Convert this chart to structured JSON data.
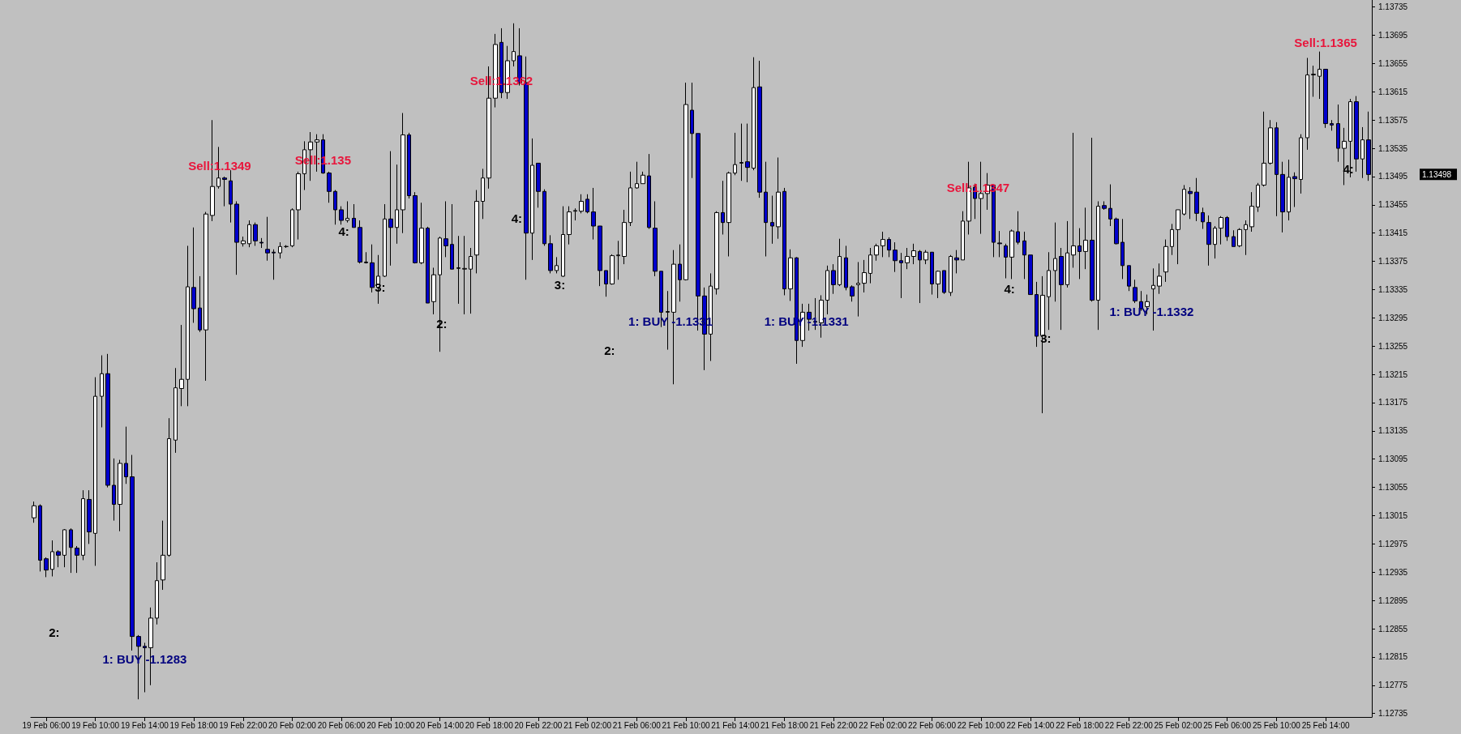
{
  "chart_data": {
    "type": "candlestick",
    "categories": [
      null,
      null,
      "19 Feb 06:00",
      null,
      null,
      null,
      null,
      null,
      null,
      null,
      "19 Feb 10:00",
      null,
      null,
      null,
      null,
      null,
      null,
      null,
      "19 Feb 14:00",
      null,
      null,
      null,
      null,
      null,
      null,
      null,
      "19 Feb 18:00",
      null,
      null,
      null,
      null,
      null,
      null,
      null,
      "19 Feb 22:00",
      null,
      null,
      null,
      null,
      null,
      null,
      null,
      "20 Feb 02:00",
      null,
      null,
      null,
      null,
      null,
      null,
      null,
      "20 Feb 06:00",
      null,
      null,
      null,
      null,
      null,
      null,
      null,
      "20 Feb 10:00",
      null,
      null,
      null,
      null,
      null,
      null,
      null,
      "20 Feb 14:00",
      null,
      null,
      null,
      null,
      null,
      null,
      null,
      "20 Feb 18:00",
      null,
      null,
      null,
      null,
      null,
      null,
      null,
      "20 Feb 22:00",
      null,
      null,
      null,
      null,
      null,
      null,
      null,
      "21 Feb 02:00",
      null,
      null,
      null,
      null,
      null,
      null,
      null,
      "21 Feb 06:00",
      null,
      null,
      null,
      null,
      null,
      null,
      null,
      "21 Feb 10:00",
      null,
      null,
      null,
      null,
      null,
      null,
      null,
      "21 Feb 14:00",
      null,
      null,
      null,
      null,
      null,
      null,
      null,
      "21 Feb 18:00",
      null,
      null,
      null,
      null,
      null,
      null,
      null,
      "21 Feb 22:00",
      null,
      null,
      null,
      null,
      null,
      null,
      null,
      "22 Feb 02:00",
      null,
      null,
      null,
      null,
      null,
      null,
      null,
      "22 Feb 06:00",
      null,
      null,
      null,
      null,
      null,
      null,
      null,
      "22 Feb 10:00",
      null,
      null,
      null,
      null,
      null,
      null,
      null,
      "22 Feb 14:00",
      null,
      null,
      null,
      null,
      null,
      null,
      null,
      "22 Feb 18:00",
      null,
      null,
      null,
      null,
      null,
      null,
      null,
      "22 Feb 22:00",
      null,
      null,
      null,
      null,
      null,
      null,
      null,
      "25 Feb 02:00",
      null,
      null,
      null,
      null,
      null,
      null,
      null,
      "25 Feb 06:00",
      null,
      null,
      null,
      null,
      null,
      null,
      null,
      "25 Feb 10:00",
      null,
      null,
      null,
      null,
      null,
      null,
      null,
      "25 Feb 14:00",
      null,
      null,
      null,
      null,
      null,
      null,
      null
    ],
    "ohlc": [
      [
        1.13012,
        1.13035,
        1.13005,
        1.13029
      ],
      [
        1.13029,
        1.13031,
        1.12936,
        1.12952
      ],
      [
        1.12954,
        1.12956,
        1.12928,
        1.12938
      ],
      [
        1.12939,
        1.1298,
        1.12929,
        1.12964
      ],
      [
        1.12964,
        1.12966,
        1.12942,
        1.12959
      ],
      [
        1.12959,
        1.12996,
        1.12942,
        1.12995
      ],
      [
        1.12995,
        1.12997,
        1.12934,
        1.1297
      ],
      [
        1.12969,
        1.12972,
        1.12934,
        1.12959
      ],
      [
        1.12959,
        1.13051,
        1.12952,
        1.13039
      ],
      [
        1.13038,
        1.13051,
        1.12975,
        1.12992
      ],
      [
        1.1299,
        1.13211,
        1.12944,
        1.13184
      ],
      [
        1.13184,
        1.13242,
        1.1314,
        1.13216
      ],
      [
        1.13216,
        1.13244,
        1.13055,
        1.13058
      ],
      [
        1.13058,
        1.13096,
        1.13008,
        1.13031
      ],
      [
        1.13031,
        1.13094,
        1.12993,
        1.13089
      ],
      [
        1.13089,
        1.13141,
        1.1306,
        1.1307
      ],
      [
        1.1307,
        1.13101,
        1.12824,
        1.12844
      ],
      [
        1.12844,
        1.12846,
        1.12755,
        1.1283
      ],
      [
        1.1283,
        1.12835,
        1.12765,
        1.12828
      ],
      [
        1.12828,
        1.12885,
        1.12775,
        1.1287
      ],
      [
        1.1287,
        1.12949,
        1.12861,
        1.12923
      ],
      [
        1.12924,
        1.13008,
        1.1291,
        1.12959
      ],
      [
        1.12959,
        1.13153,
        1.12957,
        1.13124
      ],
      [
        1.13122,
        1.13224,
        1.13104,
        1.13196
      ],
      [
        1.13195,
        1.13285,
        1.1317,
        1.13208
      ],
      [
        1.13208,
        1.13397,
        1.1317,
        1.13339
      ],
      [
        1.13338,
        1.13423,
        1.13288,
        1.13308
      ],
      [
        1.13309,
        1.13354,
        1.13275,
        1.13278
      ],
      [
        1.13278,
        1.13445,
        1.13206,
        1.13442
      ],
      [
        1.1344,
        1.13575,
        1.13432,
        1.13481
      ],
      [
        1.13481,
        1.13537,
        1.13478,
        1.13493
      ],
      [
        1.13493,
        1.13495,
        1.13453,
        1.13491
      ],
      [
        1.13489,
        1.13504,
        1.1343,
        1.13456
      ],
      [
        1.13456,
        1.1346,
        1.13356,
        1.13402
      ],
      [
        1.134,
        1.1341,
        1.13396,
        1.13404
      ],
      [
        1.134,
        1.13433,
        1.13395,
        1.13427
      ],
      [
        1.13427,
        1.1343,
        1.13397,
        1.13404
      ],
      [
        1.13402,
        1.13408,
        1.13394,
        1.13401
      ],
      [
        1.13392,
        1.13438,
        1.13376,
        1.13387
      ],
      [
        1.13388,
        1.13392,
        1.13349,
        1.13387
      ],
      [
        1.13387,
        1.13402,
        1.13379,
        1.13396
      ],
      [
        1.13396,
        1.13398,
        1.13394,
        1.13396
      ],
      [
        1.13397,
        1.1345,
        1.13395,
        1.13448
      ],
      [
        1.13448,
        1.13502,
        1.13406,
        1.13499
      ],
      [
        1.13499,
        1.13545,
        1.13476,
        1.13533
      ],
      [
        1.13533,
        1.13558,
        1.13489,
        1.13544
      ],
      [
        1.13544,
        1.13555,
        1.13502,
        1.13547
      ],
      [
        1.13547,
        1.13555,
        1.13499,
        1.135
      ],
      [
        1.135,
        1.13502,
        1.13458,
        1.13474
      ],
      [
        1.13474,
        1.13476,
        1.13427,
        1.13448
      ],
      [
        1.13448,
        1.13453,
        1.13427,
        1.13433
      ],
      [
        1.13433,
        1.1346,
        1.1343,
        1.13436
      ],
      [
        1.13436,
        1.13456,
        1.13423,
        1.13423
      ],
      [
        1.13423,
        1.13433,
        1.13372,
        1.13374
      ],
      [
        1.13374,
        1.13388,
        1.13372,
        1.13373
      ],
      [
        1.13373,
        1.13399,
        1.13331,
        1.13338
      ],
      [
        1.13338,
        1.13384,
        1.13315,
        1.13354
      ],
      [
        1.13354,
        1.13456,
        1.13353,
        1.13435
      ],
      [
        1.13435,
        1.13531,
        1.13369,
        1.13423
      ],
      [
        1.13423,
        1.13512,
        1.134,
        1.13448
      ],
      [
        1.13448,
        1.13585,
        1.13415,
        1.13554
      ],
      [
        1.13554,
        1.13557,
        1.13464,
        1.13468
      ],
      [
        1.13468,
        1.13473,
        1.13372,
        1.13373
      ],
      [
        1.13373,
        1.13458,
        1.13371,
        1.13422
      ],
      [
        1.13422,
        1.13424,
        1.13316,
        1.13316
      ],
      [
        1.13318,
        1.13366,
        1.133,
        1.13356
      ],
      [
        1.13356,
        1.1341,
        1.13247,
        1.13408
      ],
      [
        1.13407,
        1.1346,
        1.13381,
        1.13397
      ],
      [
        1.13399,
        1.13456,
        1.13364,
        1.13364
      ],
      [
        1.13365,
        1.13411,
        1.13315,
        1.13366
      ],
      [
        1.13364,
        1.13411,
        1.133,
        1.13365
      ],
      [
        1.13364,
        1.13394,
        1.13301,
        1.13382
      ],
      [
        1.13384,
        1.13476,
        1.13358,
        1.1346
      ],
      [
        1.1346,
        1.13506,
        1.13435,
        1.13493
      ],
      [
        1.13493,
        1.13651,
        1.13478,
        1.13606
      ],
      [
        1.13606,
        1.13697,
        1.13593,
        1.13682
      ],
      [
        1.13685,
        1.13705,
        1.13606,
        1.13614
      ],
      [
        1.13614,
        1.1368,
        1.13605,
        1.13659
      ],
      [
        1.13659,
        1.13712,
        1.13651,
        1.13672
      ],
      [
        1.13666,
        1.13705,
        1.13624,
        1.13628
      ],
      [
        1.13628,
        1.13665,
        1.13349,
        1.13415
      ],
      [
        1.13415,
        1.13549,
        1.13377,
        1.13511
      ],
      [
        1.13514,
        1.13514,
        1.13451,
        1.13474
      ],
      [
        1.13474,
        1.13477,
        1.13397,
        1.134
      ],
      [
        1.134,
        1.13412,
        1.13358,
        1.13362
      ],
      [
        1.13362,
        1.13381,
        1.13358,
        1.13369
      ],
      [
        1.13354,
        1.13453,
        1.13353,
        1.13413
      ],
      [
        1.13413,
        1.13453,
        1.13399,
        1.13445
      ],
      [
        1.13446,
        1.1345,
        1.13433,
        1.13447
      ],
      [
        1.13446,
        1.1347,
        1.13443,
        1.1346
      ],
      [
        1.13463,
        1.1347,
        1.13443,
        1.13445
      ],
      [
        1.13445,
        1.13479,
        1.13406,
        1.13425
      ],
      [
        1.13425,
        1.13425,
        1.1334,
        1.13362
      ],
      [
        1.13362,
        1.13362,
        1.13325,
        1.13343
      ],
      [
        1.13343,
        1.13385,
        1.13342,
        1.13383
      ],
      [
        1.13383,
        1.13404,
        1.13349,
        1.13384
      ],
      [
        1.13382,
        1.13448,
        1.13371,
        1.1343
      ],
      [
        1.1343,
        1.13502,
        1.13425,
        1.13479
      ],
      [
        1.13479,
        1.13516,
        1.13478,
        1.13485
      ],
      [
        1.13485,
        1.13502,
        1.13485,
        1.13497
      ],
      [
        1.13496,
        1.13527,
        1.13421,
        1.13423
      ],
      [
        1.13422,
        1.1346,
        1.13354,
        1.13361
      ],
      [
        1.13361,
        1.13361,
        1.13282,
        1.13303
      ],
      [
        1.13303,
        1.13333,
        1.1325,
        1.13304
      ],
      [
        1.13303,
        1.13391,
        1.13201,
        1.13371
      ],
      [
        1.13371,
        1.13399,
        1.13318,
        1.13349
      ],
      [
        1.13349,
        1.13628,
        1.13348,
        1.13597
      ],
      [
        1.13589,
        1.13628,
        1.13493,
        1.13556
      ],
      [
        1.13556,
        1.13556,
        1.13277,
        1.13326
      ],
      [
        1.13326,
        1.13338,
        1.13221,
        1.13272
      ],
      [
        1.13272,
        1.13358,
        1.13234,
        1.1334
      ],
      [
        1.13336,
        1.13446,
        1.13328,
        1.13444
      ],
      [
        1.13444,
        1.13489,
        1.13413,
        1.1343
      ],
      [
        1.1343,
        1.13502,
        1.13382,
        1.135
      ],
      [
        1.135,
        1.13557,
        1.13497,
        1.13512
      ],
      [
        1.13514,
        1.1357,
        1.13489,
        1.13515
      ],
      [
        1.13516,
        1.1357,
        1.13487,
        1.13508
      ],
      [
        1.13507,
        1.13664,
        1.13504,
        1.13621
      ],
      [
        1.13622,
        1.13659,
        1.13465,
        1.13473
      ],
      [
        1.13473,
        1.13516,
        1.13382,
        1.1343
      ],
      [
        1.1343,
        1.13468,
        1.134,
        1.13425
      ],
      [
        1.13424,
        1.13522,
        1.13407,
        1.13473
      ],
      [
        1.13474,
        1.13479,
        1.13327,
        1.13336
      ],
      [
        1.13336,
        1.13392,
        1.13319,
        1.1338
      ],
      [
        1.1338,
        1.13381,
        1.1323,
        1.13263
      ],
      [
        1.13263,
        1.13315,
        1.13254,
        1.13303
      ],
      [
        1.13303,
        1.13315,
        1.13277,
        1.13293
      ],
      [
        1.1329,
        1.13323,
        1.13278,
        1.13289
      ],
      [
        1.13288,
        1.13327,
        1.13267,
        1.1332
      ],
      [
        1.1332,
        1.13369,
        1.133,
        1.13362
      ],
      [
        1.13362,
        1.13371,
        1.13329,
        1.13342
      ],
      [
        1.13342,
        1.13407,
        1.1334,
        1.13382
      ],
      [
        1.1338,
        1.13397,
        1.13334,
        1.13338
      ],
      [
        1.13339,
        1.13341,
        1.13318,
        1.13326
      ],
      [
        1.13342,
        1.13374,
        1.13297,
        1.13344
      ],
      [
        1.13344,
        1.13377,
        1.13331,
        1.13359
      ],
      [
        1.13358,
        1.13394,
        1.13344,
        1.13384
      ],
      [
        1.13384,
        1.134,
        1.13376,
        1.13397
      ],
      [
        1.13397,
        1.13417,
        1.13381,
        1.13406
      ],
      [
        1.13406,
        1.13409,
        1.13381,
        1.13391
      ],
      [
        1.13391,
        1.13402,
        1.1336,
        1.13376
      ],
      [
        1.13376,
        1.13387,
        1.13323,
        1.13373
      ],
      [
        1.13373,
        1.13394,
        1.13364,
        1.13382
      ],
      [
        1.13382,
        1.134,
        1.13371,
        1.1339
      ],
      [
        1.13389,
        1.13391,
        1.13316,
        1.13377
      ],
      [
        1.13377,
        1.13391,
        1.13371,
        1.13388
      ],
      [
        1.13388,
        1.13388,
        1.13328,
        1.13343
      ],
      [
        1.13343,
        1.13362,
        1.13323,
        1.13361
      ],
      [
        1.13362,
        1.13362,
        1.13329,
        1.13331
      ],
      [
        1.13331,
        1.13384,
        1.13326,
        1.13382
      ],
      [
        1.1338,
        1.13391,
        1.13358,
        1.13377
      ],
      [
        1.13377,
        1.13446,
        1.13377,
        1.13432
      ],
      [
        1.13432,
        1.13516,
        1.13413,
        1.13479
      ],
      [
        1.1348,
        1.13485,
        1.13435,
        1.13464
      ],
      [
        1.13464,
        1.13516,
        1.13414,
        1.13471
      ],
      [
        1.13471,
        1.135,
        1.13448,
        1.13483
      ],
      [
        1.13483,
        1.13483,
        1.13381,
        1.13402
      ],
      [
        1.13401,
        1.13418,
        1.13381,
        1.134
      ],
      [
        1.13397,
        1.134,
        1.13351,
        1.13381
      ],
      [
        1.13381,
        1.1342,
        1.1335,
        1.13418
      ],
      [
        1.13417,
        1.13446,
        1.13399,
        1.13402
      ],
      [
        1.13404,
        1.13417,
        1.1335,
        1.13384
      ],
      [
        1.13384,
        1.13384,
        1.13328,
        1.13328
      ],
      [
        1.13328,
        1.13346,
        1.13254,
        1.13269
      ],
      [
        1.1327,
        1.13354,
        1.1316,
        1.13327
      ],
      [
        1.13325,
        1.13388,
        1.13278,
        1.13362
      ],
      [
        1.13362,
        1.1343,
        1.13318,
        1.13379
      ],
      [
        1.13382,
        1.13394,
        1.13278,
        1.13342
      ],
      [
        1.13342,
        1.13432,
        1.13338,
        1.13387
      ],
      [
        1.13384,
        1.13557,
        1.13366,
        1.13397
      ],
      [
        1.13397,
        1.13422,
        1.1335,
        1.13389
      ],
      [
        1.13389,
        1.13451,
        1.13364,
        1.13405
      ],
      [
        1.13405,
        1.1355,
        1.13318,
        1.1332
      ],
      [
        1.1332,
        1.1346,
        1.13278,
        1.13453
      ],
      [
        1.13454,
        1.1346,
        1.13448,
        1.1345
      ],
      [
        1.1345,
        1.13484,
        1.13425,
        1.13435
      ],
      [
        1.13435,
        1.13437,
        1.13399,
        1.134
      ],
      [
        1.13402,
        1.13435,
        1.1335,
        1.13369
      ],
      [
        1.13369,
        1.13369,
        1.13333,
        1.1334
      ],
      [
        1.13338,
        1.13349,
        1.13316,
        1.13319
      ],
      [
        1.13318,
        1.13333,
        1.13305,
        1.13308
      ],
      [
        1.13311,
        1.13328,
        1.133,
        1.13318
      ],
      [
        1.13336,
        1.13365,
        1.13277,
        1.13341
      ],
      [
        1.1334,
        1.13372,
        1.13329,
        1.13354
      ],
      [
        1.1336,
        1.13406,
        1.13346,
        1.13396
      ],
      [
        1.13396,
        1.13428,
        1.13384,
        1.1342
      ],
      [
        1.1342,
        1.13448,
        1.13371,
        1.13448
      ],
      [
        1.13442,
        1.13483,
        1.1344,
        1.13477
      ],
      [
        1.13474,
        1.1348,
        1.13435,
        1.13471
      ],
      [
        1.13473,
        1.13493,
        1.13432,
        1.13443
      ],
      [
        1.13444,
        1.13451,
        1.13421,
        1.13431
      ],
      [
        1.1343,
        1.1344,
        1.13369,
        1.13399
      ],
      [
        1.13399,
        1.13425,
        1.13379,
        1.13422
      ],
      [
        1.13422,
        1.13439,
        1.13399,
        1.13437
      ],
      [
        1.13437,
        1.13439,
        1.13404,
        1.1341
      ],
      [
        1.1341,
        1.13419,
        1.13396,
        1.13396
      ],
      [
        1.13397,
        1.13422,
        1.13395,
        1.1342
      ],
      [
        1.1342,
        1.13433,
        1.13384,
        1.13427
      ],
      [
        1.13424,
        1.13473,
        1.13417,
        1.13453
      ],
      [
        1.13452,
        1.13486,
        1.13445,
        1.13483
      ],
      [
        1.13483,
        1.13587,
        1.13481,
        1.13514
      ],
      [
        1.13514,
        1.13575,
        1.13512,
        1.13564
      ],
      [
        1.13564,
        1.13572,
        1.13439,
        1.13498
      ],
      [
        1.13498,
        1.13516,
        1.13416,
        1.13445
      ],
      [
        1.13445,
        1.13519,
        1.13433,
        1.13494
      ],
      [
        1.13495,
        1.13501,
        1.13452,
        1.13492
      ],
      [
        1.13491,
        1.13555,
        1.13471,
        1.1355
      ],
      [
        1.1355,
        1.13663,
        1.13533,
        1.13639
      ],
      [
        1.13639,
        1.13652,
        1.13608,
        1.1364
      ],
      [
        1.13637,
        1.13672,
        1.13605,
        1.13647
      ],
      [
        1.13647,
        1.13647,
        1.13564,
        1.1357
      ],
      [
        1.1357,
        1.13575,
        1.1356,
        1.13568
      ],
      [
        1.1357,
        1.13597,
        1.13516,
        1.13535
      ],
      [
        1.13535,
        1.13564,
        1.13483,
        1.13545
      ],
      [
        1.13545,
        1.13605,
        1.13494,
        1.13601
      ],
      [
        1.13601,
        1.13609,
        1.13502,
        1.1352
      ],
      [
        1.1352,
        1.13565,
        1.13493,
        1.13547
      ],
      [
        1.13547,
        1.13587,
        1.13489,
        1.13498
      ]
    ],
    "colors": [
      "#ffffff",
      "#0000cd",
      "#0000cd",
      "#ffffff",
      "#0000cd",
      "#ffffff",
      "#0000cd",
      "#0000cd",
      "#ffffff",
      "#0000cd",
      "#ffffff",
      "#ffffff",
      "#0000cd",
      "#0000cd",
      "#ffffff",
      "#0000cd",
      "#0000cd",
      "#0000cd",
      "#0000cd",
      "#ffffff",
      "#ffffff",
      "#ffffff",
      "#ffffff",
      "#ffffff",
      "#ffffff",
      "#ffffff",
      "#0000cd",
      "#0000cd",
      "#ffffff",
      "#ffffff",
      "#ffffff",
      "#0000cd",
      "#0000cd",
      "#0000cd",
      "#ffffff",
      "#ffffff",
      "#0000cd",
      "#0000cd",
      "#0000cd",
      "#0000cd",
      "#ffffff",
      "#000000",
      "#ffffff",
      "#ffffff",
      "#ffffff",
      "#ffffff",
      "#ffffff",
      "#0000cd",
      "#0000cd",
      "#0000cd",
      "#0000cd",
      "#ffffff",
      "#0000cd",
      "#0000cd",
      "#0000cd",
      "#0000cd",
      "#ffffff",
      "#ffffff",
      "#0000cd",
      "#ffffff",
      "#ffffff",
      "#0000cd",
      "#0000cd",
      "#ffffff",
      "#0000cd",
      "#ffffff",
      "#ffffff",
      "#0000cd",
      "#0000cd",
      "#ffffff",
      "#ffffff",
      "#ffffff",
      "#ffffff",
      "#ffffff",
      "#ffffff",
      "#ffffff",
      "#0000cd",
      "#ffffff",
      "#ffffff",
      "#0000cd",
      "#0000cd",
      "#ffffff",
      "#0000cd",
      "#0000cd",
      "#0000cd",
      "#ffffff",
      "#ffffff",
      "#ffffff",
      "#ffffff",
      "#ffffff",
      "#0000cd",
      "#0000cd",
      "#0000cd",
      "#0000cd",
      "#ffffff",
      "#ffffff",
      "#ffffff",
      "#ffffff",
      "#ffffff",
      "#ffffff",
      "#0000cd",
      "#0000cd",
      "#0000cd",
      "#ffffff",
      "#ffffff",
      "#0000cd",
      "#ffffff",
      "#0000cd",
      "#0000cd",
      "#0000cd",
      "#ffffff",
      "#ffffff",
      "#0000cd",
      "#ffffff",
      "#ffffff",
      "#ffffff",
      "#0000cd",
      "#ffffff",
      "#0000cd",
      "#0000cd",
      "#0000cd",
      "#ffffff",
      "#0000cd",
      "#ffffff",
      "#0000cd",
      "#ffffff",
      "#0000cd",
      "#0000cd",
      "#ffffff",
      "#ffffff",
      "#0000cd",
      "#ffffff",
      "#0000cd",
      "#0000cd",
      "#ffffff",
      "#ffffff",
      "#ffffff",
      "#ffffff",
      "#ffffff",
      "#0000cd",
      "#0000cd",
      "#0000cd",
      "#ffffff",
      "#ffffff",
      "#0000cd",
      "#ffffff",
      "#0000cd",
      "#ffffff",
      "#0000cd",
      "#ffffff",
      "#0000cd",
      "#ffffff",
      "#ffffff",
      "#0000cd",
      "#ffffff",
      "#ffffff",
      "#0000cd",
      "#0000cd",
      "#0000cd",
      "#ffffff",
      "#0000cd",
      "#0000cd",
      "#0000cd",
      "#0000cd",
      "#ffffff",
      "#ffffff",
      "#ffffff",
      "#0000cd",
      "#ffffff",
      "#ffffff",
      "#0000cd",
      "#ffffff",
      "#0000cd",
      "#ffffff",
      "#0000cd",
      "#0000cd",
      "#0000cd",
      "#0000cd",
      "#0000cd",
      "#0000cd",
      "#0000cd",
      "#ffffff",
      "#ffffff",
      "#ffffff",
      "#ffffff",
      "#ffffff",
      "#ffffff",
      "#ffffff",
      "#0000cd",
      "#0000cd",
      "#0000cd",
      "#0000cd",
      "#ffffff",
      "#ffffff",
      "#0000cd",
      "#0000cd",
      "#ffffff",
      "#ffffff",
      "#ffffff",
      "#ffffff",
      "#ffffff",
      "#ffffff",
      "#0000cd",
      "#0000cd",
      "#ffffff",
      "#0000cd",
      "#ffffff",
      "#ffffff",
      "#ffffff",
      "#ffffff",
      "#0000cd",
      "#0000cd",
      "#0000cd",
      "#ffffff",
      "#ffffff",
      "#0000cd",
      "#ffffff",
      "#0000cd"
    ],
    "ylim": [
      1.1273,
      1.13745
    ],
    "yticks": [
      1.12735,
      1.12775,
      1.12815,
      1.12855,
      1.12895,
      1.12935,
      1.12975,
      1.13015,
      1.13055,
      1.13095,
      1.13135,
      1.13175,
      1.13215,
      1.13255,
      1.13295,
      1.13335,
      1.13375,
      1.13415,
      1.13455,
      1.13495,
      1.13535,
      1.13575,
      1.13615,
      1.13655,
      1.13695,
      1.13735
    ],
    "grid": false,
    "annotations": [
      "Sell:1.1349",
      "Sell:1.135",
      "Sell:1.1362",
      "Sell:1.1347",
      "Sell:1.1365",
      "1: BUY -1.1283",
      "1: BUY -1.1331",
      "1: BUY -1.1331",
      "1: BUY -1.1332",
      "2:",
      "4:",
      "3:",
      "2:",
      "4:",
      "3:",
      "2:",
      "4:",
      "3:",
      "4:",
      "1.13498"
    ]
  }
}
